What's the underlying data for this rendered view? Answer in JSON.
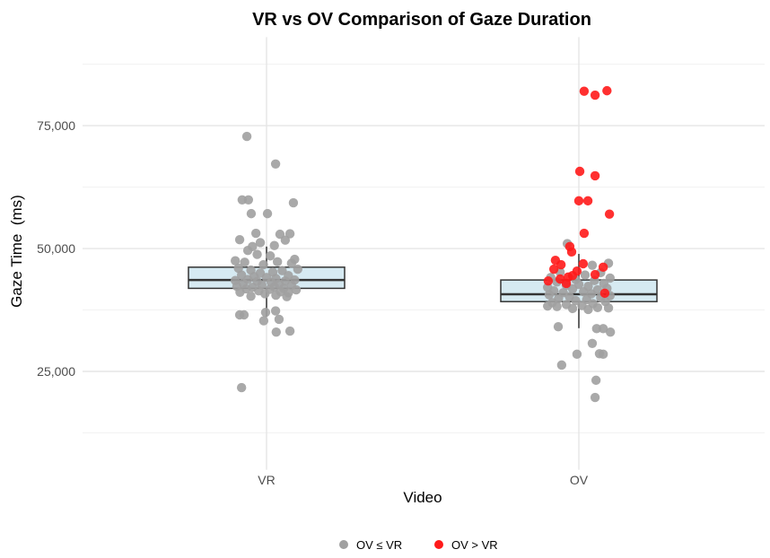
{
  "chart_data": {
    "type": "box+jitter",
    "title": "VR vs OV Comparison of Gaze Duration",
    "xlabel": "Video",
    "ylabel": "Gaze Time  (ms)",
    "categories": [
      "VR",
      "OV"
    ],
    "ylim": [
      5000,
      93000
    ],
    "yticks": [
      25000,
      50000,
      75000
    ],
    "ytick_labels": [
      "25,000",
      "50,000",
      "75,000"
    ],
    "minor_grid": [
      12500,
      37500,
      62500,
      87500
    ],
    "grid": true,
    "legend": {
      "placement": "bottom",
      "entries": [
        {
          "label": "OV ≤ VR",
          "color": "#a0a0a0"
        },
        {
          "label": "OV > VR",
          "color": "#ff1a1a"
        }
      ]
    },
    "boxes": [
      {
        "category": "VR",
        "whisker_low": 36100,
        "q1": 41900,
        "median": 43600,
        "q3": 46200,
        "whisker_high": 50400
      },
      {
        "category": "OV",
        "whisker_low": 33800,
        "q1": 39200,
        "median": 40700,
        "q3": 43600,
        "whisker_high": 48900
      }
    ],
    "box_fill": "#d6eaf2",
    "points": {
      "VR": {
        "group": "OV ≤ VR",
        "values": [
          [
            -0.063,
            72800
          ],
          [
            0.029,
            67200
          ],
          [
            -0.078,
            59900
          ],
          [
            -0.058,
            59900
          ],
          [
            0.086,
            59300
          ],
          [
            -0.049,
            57100
          ],
          [
            0.003,
            57100
          ],
          [
            -0.034,
            53100
          ],
          [
            0.043,
            52900
          ],
          [
            0.075,
            53000
          ],
          [
            -0.086,
            51800
          ],
          [
            0.06,
            51700
          ],
          [
            -0.02,
            51200
          ],
          [
            -0.045,
            50400
          ],
          [
            0.025,
            50600
          ],
          [
            -0.06,
            49600
          ],
          [
            -0.03,
            48800
          ],
          [
            0.012,
            48500
          ],
          [
            -0.1,
            47500
          ],
          [
            0.09,
            47800
          ],
          [
            0.08,
            47000
          ],
          [
            -0.07,
            47200
          ],
          [
            0.035,
            47300
          ],
          [
            -0.01,
            46700
          ],
          [
            -0.09,
            46000
          ],
          [
            0.1,
            45800
          ],
          [
            -0.05,
            45600
          ],
          [
            0.05,
            45500
          ],
          [
            0.02,
            45200
          ],
          [
            -0.02,
            45000
          ],
          [
            -0.08,
            44600
          ],
          [
            0.07,
            44500
          ],
          [
            -0.04,
            44300
          ],
          [
            0.0,
            44100
          ],
          [
            0.03,
            43900
          ],
          [
            -0.06,
            43700
          ],
          [
            0.09,
            43600
          ],
          [
            -0.1,
            43500
          ],
          [
            0.06,
            43400
          ],
          [
            -0.03,
            43300
          ],
          [
            0.015,
            43100
          ],
          [
            -0.075,
            42900
          ],
          [
            0.04,
            42800
          ],
          [
            -0.015,
            42600
          ],
          [
            0.08,
            42500
          ],
          [
            -0.095,
            42300
          ],
          [
            0.025,
            42200
          ],
          [
            -0.045,
            42100
          ],
          [
            0.055,
            41900
          ],
          [
            -0.065,
            41800
          ],
          [
            0.01,
            41700
          ],
          [
            0.095,
            41600
          ],
          [
            -0.025,
            41400
          ],
          [
            0.045,
            41200
          ],
          [
            -0.085,
            41100
          ],
          [
            0.07,
            41000
          ],
          [
            -0.005,
            40800
          ],
          [
            0.03,
            40500
          ],
          [
            -0.05,
            40300
          ],
          [
            0.065,
            40200
          ],
          [
            -0.086,
            36500
          ],
          [
            -0.072,
            36500
          ],
          [
            -0.003,
            37000
          ],
          [
            0.029,
            37300
          ],
          [
            0.04,
            35600
          ],
          [
            -0.009,
            35300
          ],
          [
            0.031,
            33000
          ],
          [
            0.075,
            33200
          ],
          [
            -0.08,
            21700
          ]
        ]
      },
      "OV": [
        {
          "group": "OV > VR",
          "values": [
            [
              0.017,
              82000
            ],
            [
              0.052,
              81200
            ],
            [
              0.09,
              82100
            ],
            [
              0.003,
              65700
            ],
            [
              0.052,
              64800
            ],
            [
              0.0,
              59700
            ],
            [
              0.029,
              59700
            ],
            [
              0.098,
              57000
            ],
            [
              0.017,
              53100
            ],
            [
              -0.029,
              50400
            ],
            [
              -0.023,
              49300
            ],
            [
              -0.075,
              47600
            ],
            [
              -0.057,
              46700
            ],
            [
              -0.08,
              45800
            ],
            [
              0.014,
              46900
            ],
            [
              -0.006,
              45400
            ],
            [
              0.078,
              46200
            ],
            [
              -0.098,
              43400
            ],
            [
              -0.06,
              43800
            ],
            [
              -0.034,
              44200
            ],
            [
              -0.02,
              44500
            ],
            [
              -0.04,
              42900
            ],
            [
              0.052,
              44700
            ],
            [
              0.083,
              40900
            ]
          ]
        },
        {
          "group": "OV ≤ VR",
          "values": [
            [
              -0.037,
              51000
            ],
            [
              0.043,
              46600
            ],
            [
              0.095,
              47000
            ],
            [
              -0.06,
              45200
            ],
            [
              0.07,
              45100
            ],
            [
              0.02,
              44600
            ],
            [
              -0.09,
              44100
            ],
            [
              0.1,
              44000
            ],
            [
              -0.01,
              43700
            ],
            [
              0.05,
              43500
            ],
            [
              -0.07,
              43200
            ],
            [
              0.08,
              42900
            ],
            [
              0.0,
              42700
            ],
            [
              -0.04,
              42500
            ],
            [
              0.03,
              42300
            ],
            [
              -0.1,
              42100
            ],
            [
              0.09,
              41900
            ],
            [
              -0.02,
              41800
            ],
            [
              0.06,
              41600
            ],
            [
              -0.08,
              41400
            ],
            [
              0.015,
              41200
            ],
            [
              -0.05,
              41000
            ],
            [
              0.04,
              40800
            ],
            [
              -0.095,
              40600
            ],
            [
              0.1,
              40400
            ],
            [
              -0.03,
              40200
            ],
            [
              0.07,
              40000
            ],
            [
              -0.065,
              39800
            ],
            [
              0.025,
              39600
            ],
            [
              -0.01,
              39400
            ],
            [
              0.085,
              39200
            ],
            [
              -0.085,
              39000
            ],
            [
              0.045,
              38800
            ],
            [
              -0.04,
              38600
            ],
            [
              0.01,
              38400
            ],
            [
              -0.07,
              38200
            ],
            [
              0.06,
              38000
            ],
            [
              -0.02,
              37800
            ],
            [
              0.095,
              37900
            ],
            [
              -0.1,
              38300
            ],
            [
              0.03,
              37600
            ],
            [
              -0.066,
              34100
            ],
            [
              0.057,
              33700
            ],
            [
              0.078,
              33700
            ],
            [
              0.101,
              33000
            ],
            [
              0.043,
              30700
            ],
            [
              -0.006,
              28500
            ],
            [
              0.066,
              28600
            ],
            [
              0.078,
              28500
            ],
            [
              -0.055,
              26300
            ],
            [
              0.055,
              23200
            ],
            [
              0.052,
              19700
            ]
          ]
        }
      ]
    }
  }
}
